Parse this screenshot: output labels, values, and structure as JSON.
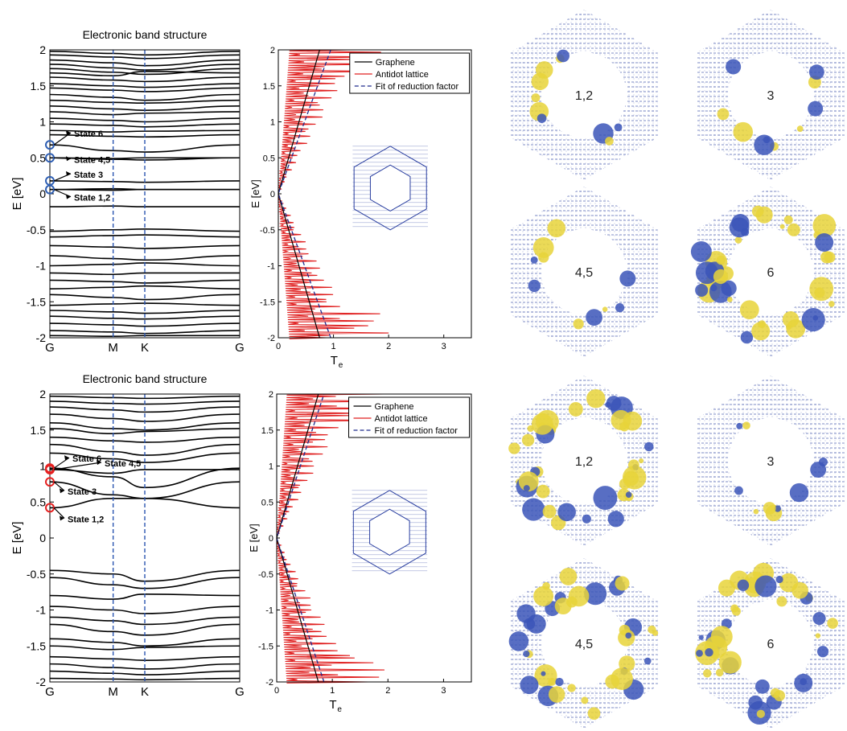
{
  "figure": {
    "panel_titles": [
      "Electronic band structure",
      "Electronic band structure"
    ],
    "orbital_labels": [
      [
        "1,2",
        "3",
        "4,5",
        "6"
      ],
      [
        "1,2",
        "3",
        "4,5",
        "6"
      ]
    ]
  },
  "colors": {
    "band": "#000000",
    "symmetry_line": "#2a55b0",
    "marker_top": "#2f5fb3",
    "marker_bottom": "#e52020",
    "graphene": "#000000",
    "antidot": "#e02020",
    "fit": "#1f2a8c",
    "lattice": "#2a3fa0",
    "orbital_blue": "#3b55b8",
    "orbital_yellow": "#e8d33a"
  },
  "chart_data": [
    {
      "type": "line",
      "title": "Electronic band structure",
      "xlabel": "",
      "ylabel": "E [eV]",
      "x_ticks": [
        "G",
        "M",
        "K",
        "G"
      ],
      "x_tick_positions": [
        0,
        1,
        1.5,
        3
      ],
      "ylim": [
        -2,
        2
      ],
      "y_ticks": [
        "2",
        "1.5",
        "1",
        "0.5",
        "0",
        "-0.5",
        "-1",
        "-1.5",
        "-2"
      ],
      "y_tick_values": [
        2,
        1.5,
        1,
        0.5,
        0,
        -0.5,
        -1,
        -1.5,
        -2
      ],
      "bands": [
        [
          1.98,
          1.95,
          1.93,
          1.98
        ],
        [
          1.93,
          1.9,
          1.88,
          1.93
        ],
        [
          1.86,
          1.82,
          1.78,
          1.86
        ],
        [
          1.8,
          1.75,
          1.72,
          1.8
        ],
        [
          1.74,
          1.69,
          1.66,
          1.74
        ],
        [
          1.68,
          1.64,
          1.7,
          1.68
        ],
        [
          1.62,
          1.58,
          1.56,
          1.62
        ],
        [
          1.53,
          1.5,
          1.48,
          1.53
        ],
        [
          1.47,
          1.44,
          1.42,
          1.47
        ],
        [
          1.38,
          1.34,
          1.3,
          1.38
        ],
        [
          1.3,
          1.27,
          1.26,
          1.3
        ],
        [
          1.22,
          1.18,
          1.16,
          1.22
        ],
        [
          1.14,
          1.1,
          1.12,
          1.14
        ],
        [
          1.05,
          1.02,
          1.0,
          1.05
        ],
        [
          0.97,
          0.95,
          0.93,
          0.97
        ],
        [
          0.88,
          0.86,
          0.87,
          0.88
        ],
        [
          0.82,
          0.8,
          0.79,
          0.82
        ],
        [
          0.68,
          0.6,
          0.58,
          0.68
        ],
        [
          0.5,
          0.48,
          0.47,
          0.5
        ],
        [
          0.5,
          0.49,
          0.5,
          0.5
        ],
        [
          0.18,
          0.17,
          0.16,
          0.18
        ],
        [
          0.06,
          0.05,
          0.06,
          0.06
        ],
        [
          0.06,
          0.07,
          0.06,
          0.06
        ],
        [
          -0.18,
          -0.17,
          -0.18,
          -0.18
        ],
        [
          -0.52,
          -0.5,
          -0.49,
          -0.52
        ],
        [
          -0.6,
          -0.58,
          -0.57,
          -0.6
        ],
        [
          -0.72,
          -0.74,
          -0.76,
          -0.72
        ],
        [
          -0.86,
          -0.9,
          -0.92,
          -0.86
        ],
        [
          -1.0,
          -0.98,
          -0.96,
          -1.0
        ],
        [
          -1.1,
          -1.12,
          -1.1,
          -1.1
        ],
        [
          -1.2,
          -1.22,
          -1.24,
          -1.2
        ],
        [
          -1.32,
          -1.3,
          -1.28,
          -1.32
        ],
        [
          -1.4,
          -1.44,
          -1.47,
          -1.4
        ],
        [
          -1.55,
          -1.53,
          -1.52,
          -1.55
        ],
        [
          -1.62,
          -1.64,
          -1.66,
          -1.62
        ],
        [
          -1.7,
          -1.73,
          -1.74,
          -1.7
        ],
        [
          -1.8,
          -1.82,
          -1.84,
          -1.8
        ],
        [
          -1.9,
          -1.92,
          -1.94,
          -1.9
        ],
        [
          -1.97,
          -1.98,
          -1.97,
          -1.97
        ]
      ],
      "states": [
        {
          "label": "State 6",
          "e": 0.68
        },
        {
          "label": "State 4,5",
          "e": 0.5
        },
        {
          "label": "State 3",
          "e": 0.18
        },
        {
          "label": "State 1,2",
          "e": 0.06
        }
      ]
    },
    {
      "type": "line",
      "title": "",
      "xlabel": "Te",
      "ylabel": "E [eV]",
      "xlim": [
        0,
        3.5
      ],
      "ylim": [
        -2,
        2
      ],
      "x_ticks": [
        0,
        1,
        2,
        3
      ],
      "y_ticks": [
        2,
        1.5,
        1,
        0.5,
        0,
        -0.5,
        -1,
        -1.5,
        -2
      ],
      "legend": "top-right",
      "series": [
        {
          "name": "Graphene",
          "x": [
            0.75,
            0,
            0.75
          ],
          "y": [
            2,
            0,
            -2
          ]
        },
        {
          "name": "Antidot lattice",
          "x": [
            0,
            0.05,
            0,
            0.1,
            0,
            0.3,
            0.05,
            0.2,
            0,
            0.35,
            0.2,
            0.45,
            0.3,
            0.6,
            0.45,
            0.8,
            0.5,
            0.9,
            0.6,
            1.1,
            0.7,
            1.3,
            0.9,
            1.6,
            1.1,
            1.9,
            1.6,
            1.8
          ],
          "y": [
            0,
            0.3,
            0.5,
            0.7,
            0.8,
            0.95,
            1.05,
            1.15,
            1.2,
            1.3,
            1.4,
            1.5,
            1.55,
            1.6,
            1.7,
            1.75,
            1.8,
            1.85,
            1.9,
            1.92,
            1.95,
            1.98,
            2.0,
            -2.0,
            -1.95,
            -1.9,
            -1.85,
            -1.8
          ]
        },
        {
          "name": "Fit of reduction factor",
          "x": [
            0.95,
            0,
            0.95
          ],
          "y": [
            -2,
            0,
            2
          ]
        }
      ]
    },
    {
      "type": "line",
      "title": "Electronic band structure",
      "xlabel": "",
      "ylabel": "E [eV]",
      "x_ticks": [
        "G",
        "M",
        "K",
        "G"
      ],
      "x_tick_positions": [
        0,
        1,
        1.5,
        3
      ],
      "ylim": [
        -2,
        2
      ],
      "y_ticks": [
        "2",
        "1.5",
        "1",
        "0.5",
        "0",
        "-0.5",
        "-1",
        "-1.5",
        "-2"
      ],
      "y_tick_values": [
        2,
        1.5,
        1,
        0.5,
        0,
        -0.5,
        -1,
        -1.5,
        -2
      ],
      "bands": [
        [
          1.97,
          1.95,
          1.94,
          1.97
        ],
        [
          1.9,
          1.87,
          1.86,
          1.9
        ],
        [
          1.82,
          1.78,
          1.75,
          1.82
        ],
        [
          1.72,
          1.66,
          1.62,
          1.72
        ],
        [
          1.6,
          1.52,
          1.5,
          1.6
        ],
        [
          1.52,
          1.45,
          1.48,
          1.52
        ],
        [
          1.4,
          1.35,
          1.33,
          1.4
        ],
        [
          1.3,
          1.2,
          1.15,
          1.3
        ],
        [
          1.18,
          1.1,
          1.05,
          1.18
        ],
        [
          0.97,
          0.85,
          0.7,
          0.97
        ],
        [
          0.95,
          0.9,
          0.95,
          0.95
        ],
        [
          0.78,
          0.6,
          0.55,
          0.78
        ],
        [
          0.42,
          0.55,
          0.55,
          0.42
        ],
        [
          -0.45,
          -0.5,
          -0.6,
          -0.45
        ],
        [
          -0.55,
          -0.65,
          -0.7,
          -0.55
        ],
        [
          -0.8,
          -0.85,
          -0.78,
          -0.8
        ],
        [
          -0.95,
          -1.0,
          -1.05,
          -0.95
        ],
        [
          -1.1,
          -1.15,
          -1.2,
          -1.1
        ],
        [
          -1.2,
          -1.3,
          -1.35,
          -1.2
        ],
        [
          -1.4,
          -1.45,
          -1.5,
          -1.4
        ],
        [
          -1.5,
          -1.55,
          -1.52,
          -1.5
        ],
        [
          -1.65,
          -1.68,
          -1.7,
          -1.65
        ],
        [
          -1.75,
          -1.8,
          -1.82,
          -1.75
        ],
        [
          -1.85,
          -1.88,
          -1.9,
          -1.85
        ],
        [
          -1.95,
          -1.96,
          -1.97,
          -1.95
        ]
      ],
      "states": [
        {
          "label": "State 6",
          "e": 0.97
        },
        {
          "label": "State 4,5",
          "e": 0.95
        },
        {
          "label": "State 3",
          "e": 0.78
        },
        {
          "label": "State 1,2",
          "e": 0.42
        }
      ]
    },
    {
      "type": "line",
      "title": "",
      "xlabel": "Te",
      "ylabel": "E [eV]",
      "xlim": [
        0,
        3.5
      ],
      "ylim": [
        -2,
        2
      ],
      "x_ticks": [
        0,
        1,
        2,
        3
      ],
      "y_ticks": [
        2,
        1.5,
        1,
        0.5,
        0,
        -0.5,
        -1,
        -1.5,
        -2
      ],
      "legend": "top-right",
      "series": [
        {
          "name": "Graphene",
          "x": [
            0.75,
            0,
            0.75
          ],
          "y": [
            2,
            0,
            -2
          ]
        },
        {
          "name": "Antidot lattice",
          "x": [
            0,
            0.1,
            0,
            0.3,
            0,
            0.5,
            0.1,
            0.8,
            0.2,
            1.1,
            0.3,
            1.3,
            0.4,
            1.0,
            0.6,
            1.5,
            0.8,
            1.6,
            1.0,
            1.8,
            1.2,
            1.7,
            1.6,
            1.8
          ],
          "y": [
            0,
            0.4,
            0.5,
            0.6,
            0.8,
            1.0,
            1.1,
            1.2,
            1.3,
            1.4,
            1.5,
            1.6,
            1.7,
            1.8,
            1.9,
            1.95,
            2.0,
            -1.95,
            -1.9,
            -1.85,
            -1.8,
            -1.7,
            -1.6,
            -1.5
          ]
        },
        {
          "name": "Fit of reduction factor",
          "x": [
            0.85,
            0,
            0.85
          ],
          "y": [
            -2,
            0,
            2
          ]
        }
      ]
    }
  ]
}
